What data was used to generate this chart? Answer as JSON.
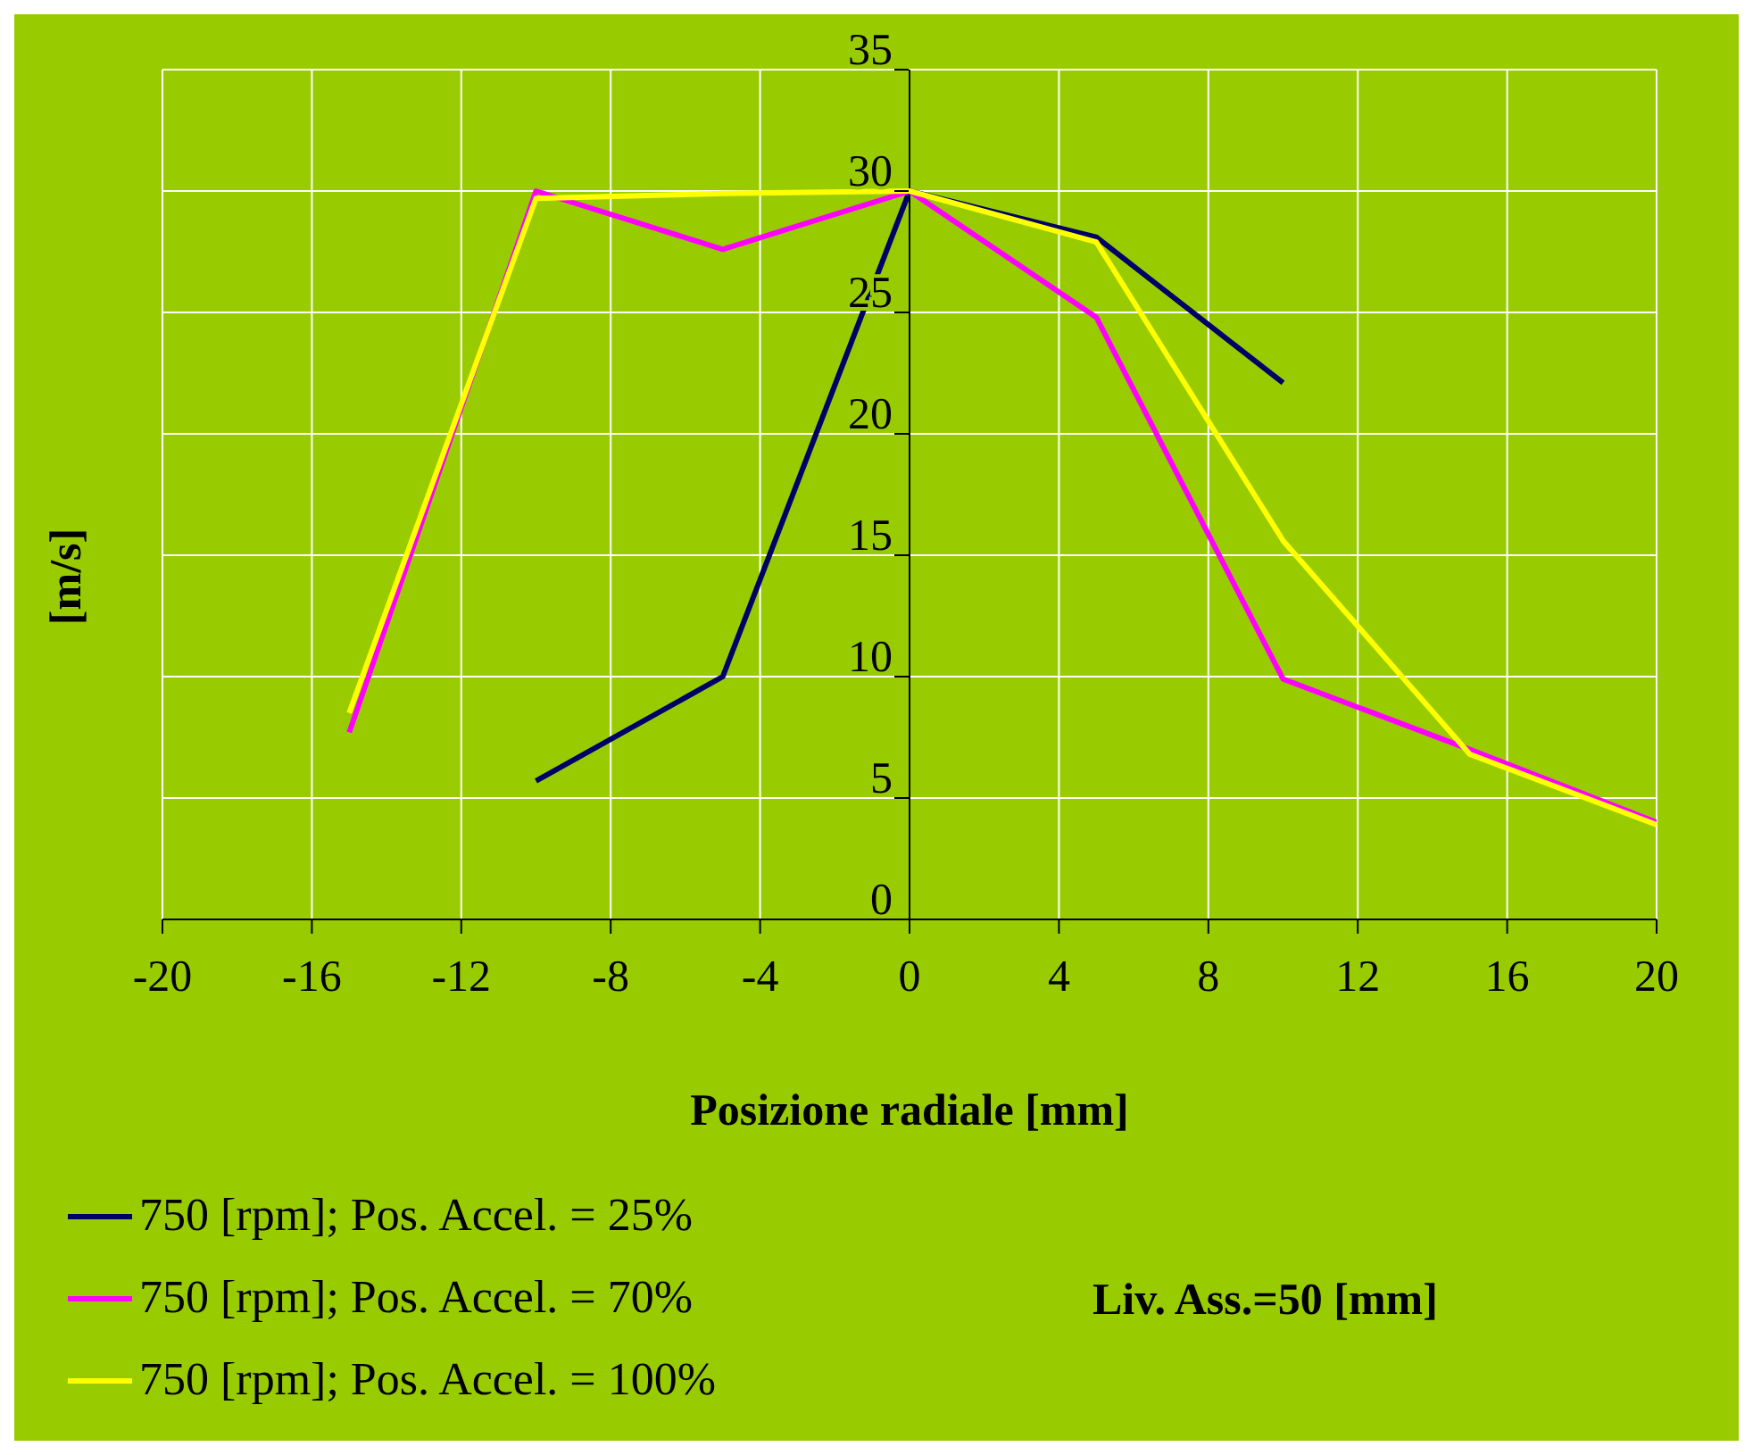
{
  "chart_data": {
    "type": "line",
    "xlabel": "Posizione radiale [mm]",
    "ylabel": "[m/s]",
    "xlim": [
      -20,
      20
    ],
    "xticks": [
      -20,
      -16,
      -12,
      -8,
      -4,
      0,
      4,
      8,
      12,
      16,
      20
    ],
    "ylim": [
      0,
      35
    ],
    "yticks": [
      0,
      5,
      10,
      15,
      20,
      25,
      30,
      35
    ],
    "grid": true,
    "legend": "bottom left",
    "annotations": [
      "Liv. Ass.=50 [mm]"
    ],
    "series": [
      {
        "name": "750 [rpm]; Pos. Accel. = 25%",
        "color": "#000066",
        "x": [
          -10,
          -5,
          0,
          5,
          10
        ],
        "values": [
          5.7,
          10,
          30,
          28.1,
          22.1
        ]
      },
      {
        "name": "750 [rpm]; Pos. Accel. = 70%",
        "color": "#ff00ff",
        "x": [
          -15,
          -10,
          -5,
          0,
          5,
          10,
          15,
          20
        ],
        "values": [
          7.7,
          30,
          27.6,
          30,
          24.8,
          9.9,
          7.0,
          4.0
        ]
      },
      {
        "name": "750 [rpm]; Pos. Accel. = 100%",
        "color": "#ffff00",
        "x": [
          -15,
          -10,
          -5,
          0,
          5,
          10,
          15,
          20
        ],
        "values": [
          8.5,
          29.7,
          29.9,
          30,
          27.9,
          15.6,
          6.8,
          3.9
        ]
      }
    ]
  }
}
